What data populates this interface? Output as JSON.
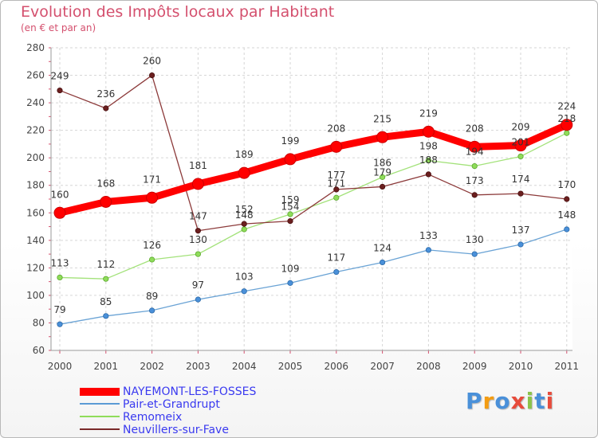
{
  "chart_data": {
    "type": "line",
    "title": "Evolution des Impôts locaux par Habitant",
    "subtitle": "(en € et par an)",
    "xlabel": "",
    "ylabel": "",
    "ylim": [
      60,
      280
    ],
    "yticks": [
      60,
      80,
      100,
      120,
      140,
      160,
      180,
      200,
      220,
      240,
      260,
      280
    ],
    "categories": [
      "2000",
      "2001",
      "2002",
      "2003",
      "2004",
      "2005",
      "2006",
      "2007",
      "2008",
      "2009",
      "2010",
      "2011"
    ],
    "grid": true,
    "legend_position": "bottom-left",
    "series": [
      {
        "name": "NAYEMONT-LES-FOSSES",
        "color": "#ff0000",
        "values": [
          160,
          168,
          171,
          181,
          189,
          199,
          208,
          215,
          219,
          208,
          209,
          224
        ]
      },
      {
        "name": "Pair-et-Grandrupt",
        "color": "#5b9bd5",
        "values": [
          79,
          85,
          89,
          97,
          103,
          109,
          117,
          124,
          133,
          130,
          137,
          148
        ]
      },
      {
        "name": "Remomeix",
        "color": "#8fdc5a",
        "values": [
          113,
          112,
          126,
          130,
          148,
          159,
          171,
          186,
          198,
          194,
          201,
          218
        ]
      },
      {
        "name": "Neuvillers-sur-Fave",
        "color": "#7a2a2a",
        "values": [
          249,
          236,
          260,
          147,
          152,
          154,
          177,
          179,
          188,
          173,
          174,
          170
        ]
      }
    ]
  },
  "logo": {
    "text": "Proxiti",
    "letter_colors": [
      "#4a90d9",
      "#f39c12",
      "#4a90d9",
      "#e74c3c",
      "#8bc34a",
      "#4a90d9",
      "#e74c3c"
    ]
  }
}
